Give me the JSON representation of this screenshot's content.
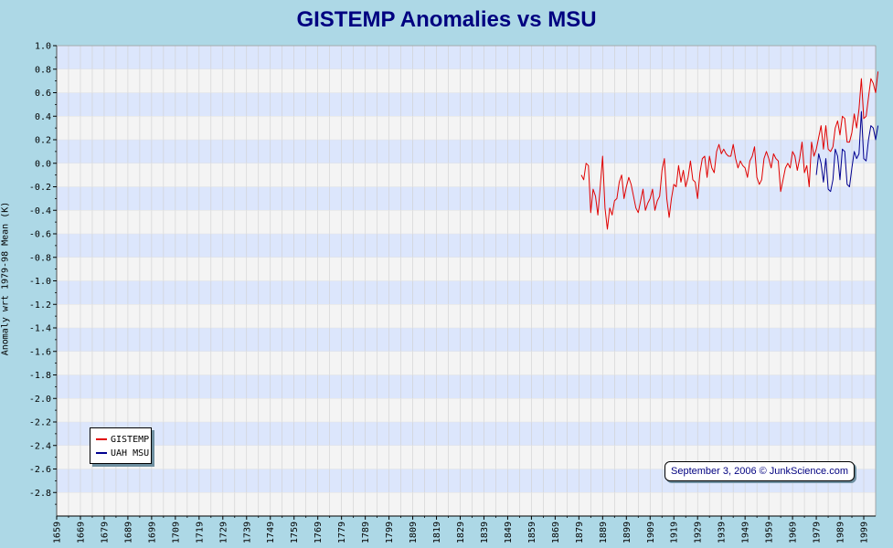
{
  "chart_data": {
    "type": "line",
    "title": "GISTEMP Anomalies vs MSU",
    "ylabel": "Anomaly wrt 1979-98 Mean (K)",
    "xlabel": "",
    "xlim": [
      1659,
      2004
    ],
    "ylim": [
      -3.0,
      1.0
    ],
    "y_ticks": [
      "1.0",
      "0.8",
      "0.6",
      "0.4",
      "0.2",
      "0.0",
      "-0.2",
      "-0.4",
      "-0.6",
      "-0.8",
      "-1.0",
      "-1.2",
      "-1.4",
      "-1.6",
      "-1.8",
      "-2.0",
      "-2.2",
      "-2.4",
      "-2.6",
      "-2.8"
    ],
    "x_ticks": [
      "1659",
      "1669",
      "1679",
      "1689",
      "1699",
      "1709",
      "1719",
      "1729",
      "1739",
      "1749",
      "1759",
      "1769",
      "1779",
      "1789",
      "1799",
      "1809",
      "1819",
      "1829",
      "1839",
      "1849",
      "1859",
      "1869",
      "1879",
      "1889",
      "1899",
      "1909",
      "1919",
      "1929",
      "1939",
      "1949",
      "1959",
      "1969",
      "1979",
      "1989",
      "1999"
    ],
    "grid": true,
    "legend_position": "bottom-left",
    "series": [
      {
        "name": "GISTEMP",
        "color": "#e00000",
        "x": [
          1880,
          1881,
          1882,
          1883,
          1884,
          1885,
          1886,
          1887,
          1888,
          1889,
          1890,
          1891,
          1892,
          1893,
          1894,
          1895,
          1896,
          1897,
          1898,
          1899,
          1900,
          1901,
          1902,
          1903,
          1904,
          1905,
          1906,
          1907,
          1908,
          1909,
          1910,
          1911,
          1912,
          1913,
          1914,
          1915,
          1916,
          1917,
          1918,
          1919,
          1920,
          1921,
          1922,
          1923,
          1924,
          1925,
          1926,
          1927,
          1928,
          1929,
          1930,
          1931,
          1932,
          1933,
          1934,
          1935,
          1936,
          1937,
          1938,
          1939,
          1940,
          1941,
          1942,
          1943,
          1944,
          1945,
          1946,
          1947,
          1948,
          1949,
          1950,
          1951,
          1952,
          1953,
          1954,
          1955,
          1956,
          1957,
          1958,
          1959,
          1960,
          1961,
          1962,
          1963,
          1964,
          1965,
          1966,
          1967,
          1968,
          1969,
          1970,
          1971,
          1972,
          1973,
          1974,
          1975,
          1976,
          1977,
          1978,
          1979,
          1980,
          1981,
          1982,
          1983,
          1984,
          1985,
          1986,
          1987,
          1988,
          1989,
          1990,
          1991,
          1992,
          1993,
          1994,
          1995,
          1996,
          1997,
          1998,
          1999,
          2000,
          2001,
          2002,
          2003,
          2004,
          2005
        ],
        "values": [
          -0.1,
          -0.14,
          0.0,
          -0.02,
          -0.42,
          -0.22,
          -0.28,
          -0.44,
          -0.2,
          0.06,
          -0.38,
          -0.56,
          -0.38,
          -0.44,
          -0.32,
          -0.3,
          -0.16,
          -0.1,
          -0.3,
          -0.2,
          -0.12,
          -0.18,
          -0.28,
          -0.38,
          -0.42,
          -0.32,
          -0.22,
          -0.4,
          -0.34,
          -0.3,
          -0.22,
          -0.4,
          -0.32,
          -0.28,
          -0.06,
          0.04,
          -0.3,
          -0.46,
          -0.3,
          -0.18,
          -0.2,
          -0.02,
          -0.16,
          -0.06,
          -0.2,
          -0.12,
          0.02,
          -0.14,
          -0.16,
          -0.3,
          -0.08,
          0.04,
          0.06,
          -0.12,
          0.06,
          -0.04,
          -0.08,
          0.1,
          0.16,
          0.08,
          0.12,
          0.08,
          0.06,
          0.06,
          0.16,
          0.04,
          -0.04,
          0.02,
          -0.02,
          -0.04,
          -0.12,
          0.02,
          0.06,
          0.14,
          -0.12,
          -0.18,
          -0.14,
          0.04,
          0.1,
          0.04,
          -0.04,
          0.08,
          0.04,
          0.02,
          -0.24,
          -0.14,
          -0.04,
          0.0,
          -0.04,
          0.1,
          0.06,
          -0.06,
          0.04,
          0.18,
          -0.08,
          -0.02,
          -0.2,
          0.18,
          0.06,
          0.12,
          0.22,
          0.32,
          0.12,
          0.32,
          0.12,
          0.1,
          0.14,
          0.3,
          0.36,
          0.24,
          0.4,
          0.38,
          0.18,
          0.18,
          0.26,
          0.42,
          0.3,
          0.46,
          0.72,
          0.38,
          0.4,
          0.56,
          0.72,
          0.68,
          0.6,
          0.78
        ]
      },
      {
        "name": "UAH MSU",
        "color": "#000090",
        "x": [
          1979,
          1980,
          1981,
          1982,
          1983,
          1984,
          1985,
          1986,
          1987,
          1988,
          1989,
          1990,
          1991,
          1992,
          1993,
          1994,
          1995,
          1996,
          1997,
          1998,
          1999,
          2000,
          2001,
          2002,
          2003,
          2004,
          2005
        ],
        "values": [
          -0.1,
          0.08,
          0.0,
          -0.16,
          0.04,
          -0.22,
          -0.24,
          -0.14,
          0.12,
          0.06,
          -0.14,
          0.12,
          0.1,
          -0.18,
          -0.2,
          -0.04,
          0.1,
          0.04,
          0.08,
          0.44,
          0.04,
          0.02,
          0.2,
          0.32,
          0.3,
          0.2,
          0.32
        ]
      }
    ]
  },
  "credit": "September 3, 2006 © JunkScience.com"
}
